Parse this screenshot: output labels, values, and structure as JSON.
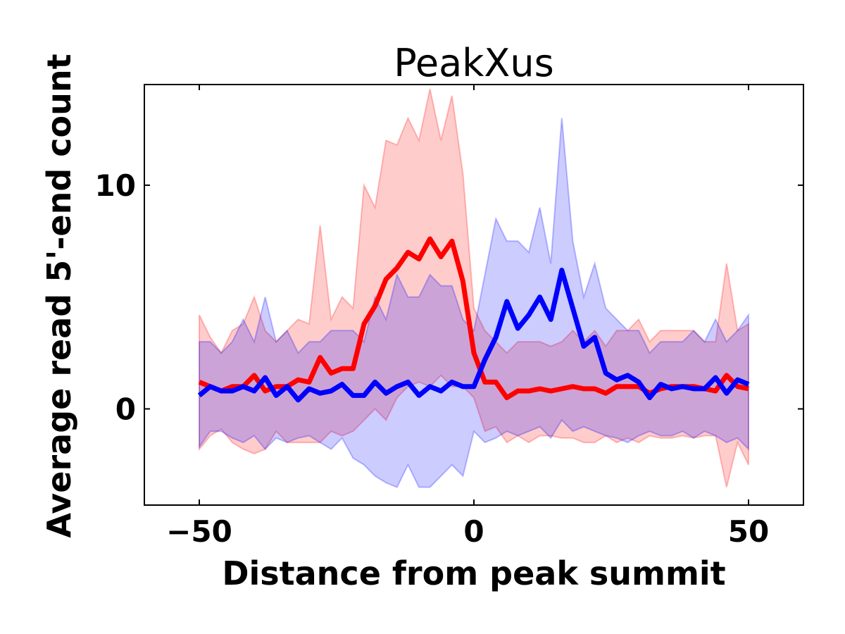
{
  "chart_data": {
    "type": "line",
    "title": "PeakXus",
    "xlabel": "Distance from peak summit",
    "ylabel": "Average read 5'-end count",
    "x": [
      -50,
      -48,
      -46,
      -44,
      -42,
      -40,
      -38,
      -36,
      -34,
      -32,
      -30,
      -28,
      -26,
      -24,
      -22,
      -20,
      -18,
      -16,
      -14,
      -12,
      -10,
      -8,
      -6,
      -4,
      -2,
      0,
      2,
      4,
      6,
      8,
      10,
      12,
      14,
      16,
      18,
      20,
      22,
      24,
      26,
      28,
      30,
      32,
      34,
      36,
      38,
      40,
      42,
      44,
      46,
      48,
      50
    ],
    "series": [
      {
        "color": "#ff0000",
        "values": [
          1.2,
          1.0,
          0.8,
          1.0,
          1.0,
          1.5,
          0.8,
          1.0,
          1.0,
          1.3,
          1.2,
          2.3,
          1.6,
          1.8,
          1.8,
          3.8,
          4.6,
          5.8,
          6.3,
          7.0,
          6.7,
          7.6,
          6.8,
          7.5,
          5.7,
          2.5,
          1.2,
          1.2,
          0.5,
          0.8,
          0.8,
          0.9,
          0.8,
          0.9,
          1.0,
          0.9,
          0.9,
          0.7,
          1.0,
          1.0,
          1.0,
          0.7,
          0.9,
          1.0,
          1.0,
          1.0,
          0.9,
          0.8,
          1.5,
          1.0,
          0.9
        ],
        "upper": [
          4.2,
          3.2,
          2.5,
          3.5,
          3.8,
          5.0,
          3.5,
          3.0,
          3.5,
          4.0,
          3.8,
          8.2,
          4.0,
          5.0,
          4.5,
          10.0,
          9.0,
          12.0,
          11.8,
          13.0,
          12.0,
          14.3,
          12.0,
          14.0,
          10.5,
          4.5,
          3.5,
          3.0,
          2.5,
          3.0,
          3.0,
          3.0,
          2.8,
          3.0,
          3.5,
          3.0,
          3.5,
          2.8,
          3.5,
          3.5,
          4.0,
          3.0,
          3.5,
          3.5,
          3.5,
          3.5,
          3.0,
          3.0,
          6.5,
          3.5,
          3.8
        ],
        "lower": [
          -1.8,
          -1.2,
          -0.9,
          -1.5,
          -1.8,
          -2.0,
          -1.8,
          -1.0,
          -1.5,
          -1.5,
          -1.5,
          -1.5,
          -1.0,
          -1.2,
          -1.0,
          -0.5,
          0.0,
          -0.5,
          0.5,
          1.0,
          1.2,
          1.0,
          1.5,
          1.0,
          1.0,
          0.5,
          -1.0,
          -0.8,
          -1.5,
          -1.2,
          -1.5,
          -1.2,
          -1.2,
          -1.3,
          -1.3,
          -1.5,
          -1.5,
          -1.2,
          -1.5,
          -1.3,
          -1.5,
          -1.2,
          -1.3,
          -1.3,
          -1.2,
          -1.3,
          -1.2,
          -1.2,
          -3.5,
          -1.5,
          -2.5
        ]
      },
      {
        "color": "#0000ff",
        "values": [
          0.6,
          1.0,
          0.8,
          0.8,
          1.0,
          0.8,
          1.4,
          0.6,
          1.0,
          0.4,
          0.9,
          0.7,
          0.8,
          1.1,
          0.6,
          0.6,
          1.2,
          0.7,
          1.0,
          1.2,
          0.6,
          1.0,
          0.8,
          1.2,
          1.0,
          1.0,
          2.2,
          3.2,
          4.8,
          3.6,
          4.2,
          5.0,
          4.0,
          6.2,
          4.5,
          2.8,
          3.2,
          1.6,
          1.3,
          1.5,
          1.2,
          0.5,
          1.1,
          0.9,
          1.0,
          0.9,
          0.9,
          1.4,
          0.7,
          1.3,
          1.1
        ],
        "upper": [
          3.0,
          3.0,
          2.5,
          3.0,
          4.0,
          3.0,
          5.0,
          3.0,
          3.5,
          2.5,
          3.0,
          3.0,
          3.5,
          3.5,
          3.5,
          3.0,
          5.0,
          4.0,
          6.0,
          5.0,
          5.0,
          6.0,
          5.5,
          5.5,
          4.0,
          3.5,
          6.0,
          8.5,
          7.5,
          7.5,
          7.0,
          9.0,
          6.5,
          13.0,
          7.5,
          5.0,
          6.5,
          4.5,
          4.0,
          3.5,
          3.5,
          2.5,
          3.0,
          3.0,
          3.0,
          3.5,
          3.0,
          4.0,
          3.0,
          3.5,
          4.2
        ],
        "lower": [
          -1.7,
          -1.0,
          -1.0,
          -1.3,
          -1.5,
          -1.2,
          -1.8,
          -1.3,
          -1.5,
          -1.3,
          -1.2,
          -1.5,
          -1.8,
          -1.3,
          -2.2,
          -2.5,
          -3.0,
          -3.3,
          -3.5,
          -2.5,
          -3.5,
          -3.5,
          -3.0,
          -2.5,
          -3.0,
          -1.0,
          -1.5,
          -1.3,
          -1.0,
          -1.2,
          -1.0,
          -0.8,
          -1.3,
          -0.5,
          -1.0,
          -0.8,
          -1.0,
          -1.2,
          -1.3,
          -1.5,
          -1.2,
          -1.0,
          -1.2,
          -1.2,
          -1.0,
          -1.3,
          -1.0,
          -1.2,
          -1.5,
          -1.3,
          -1.8
        ]
      }
    ],
    "xlim": [
      -60,
      60
    ],
    "ylim": [
      -4.3,
      14.5
    ],
    "xticks": [
      {
        "value": -50,
        "label": "−50"
      },
      0,
      50
    ],
    "yticks": [
      0,
      10
    ]
  }
}
